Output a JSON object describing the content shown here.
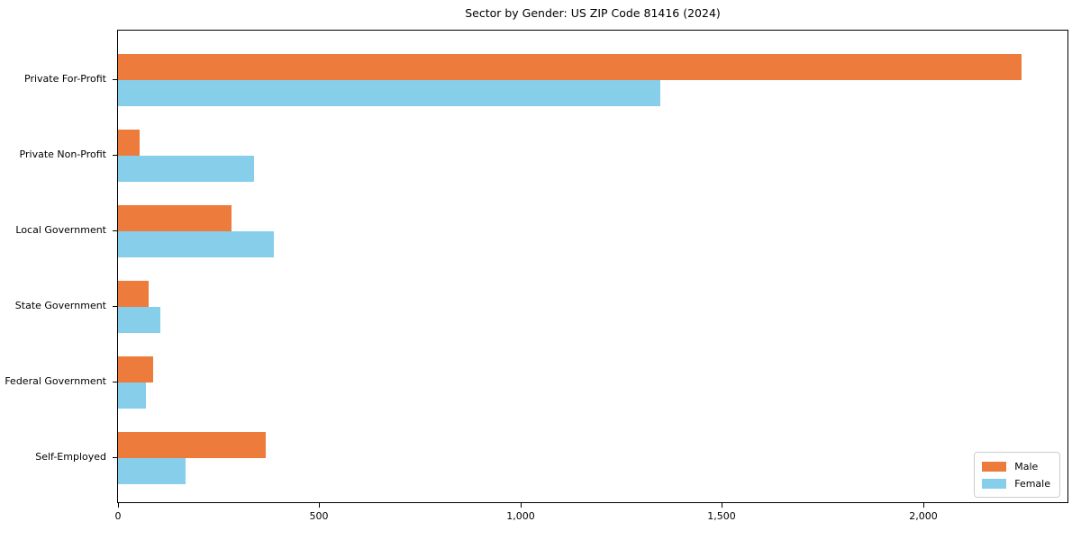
{
  "chart_data": {
    "type": "bar",
    "orientation": "horizontal",
    "title": "Sector by Gender: US ZIP Code 81416 (2024)",
    "categories": [
      "Private For-Profit",
      "Private Non-Profit",
      "Local Government",
      "State Government",
      "Federal Government",
      "Self-Employed"
    ],
    "series": [
      {
        "name": "Male",
        "color": "#ED7B3B",
        "values": [
          2244,
          54,
          281,
          77,
          88,
          367
        ]
      },
      {
        "name": "Female",
        "color": "#87CEEB",
        "values": [
          1347,
          337,
          386,
          106,
          70,
          168
        ]
      }
    ],
    "xlabel": "",
    "ylabel": "",
    "xlim": [
      0,
      2358
    ],
    "xticks": [
      0,
      500,
      1000,
      1500,
      2000
    ],
    "xtick_labels": [
      "0",
      "500",
      "1,000",
      "1,500",
      "2,000"
    ],
    "grid": false,
    "legend": {
      "position": "lower right",
      "entries": [
        "Male",
        "Female"
      ]
    },
    "colors": {
      "background": "#ffffff",
      "spine": "#000000",
      "text": "#000000",
      "legend_border": "#cccccc"
    }
  }
}
